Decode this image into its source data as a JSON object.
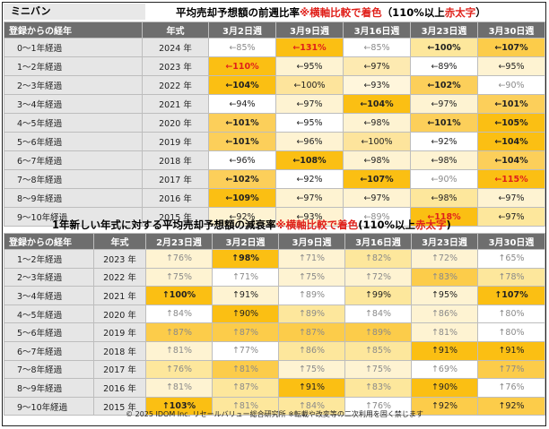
{
  "section1": {
    "tag": "ミニバン",
    "title_main": "平均売却予想額の前週比率",
    "title_note": "※横軸比較で着色",
    "title_paren_open": "（110%以上",
    "title_bold": "赤太字",
    "title_paren_close": "）",
    "headers": [
      "登録からの経年",
      "年式",
      "3月2日週",
      "3月9日週",
      "3月16日週",
      "3月23日週",
      "3月30日週"
    ],
    "rows": [
      {
        "age": "0～1年経過",
        "year": "2024 年",
        "cells": [
          {
            "t": "←85%",
            "bg": "#ffffff",
            "s": "g"
          },
          {
            "t": "←131%",
            "bg": "#fbbf13",
            "s": "r"
          },
          {
            "t": "←85%",
            "bg": "#ffffff",
            "s": "g"
          },
          {
            "t": "←100%",
            "bg": "#fde79c",
            "s": "b"
          },
          {
            "t": "←107%",
            "bg": "#fccc4a",
            "s": "b"
          }
        ]
      },
      {
        "age": "1～2年経過",
        "year": "2023 年",
        "cells": [
          {
            "t": "←110%",
            "bg": "#fbbf13",
            "s": "r"
          },
          {
            "t": "←95%",
            "bg": "#fef3d2",
            "s": ""
          },
          {
            "t": "←97%",
            "bg": "#fdeab1",
            "s": ""
          },
          {
            "t": "←89%",
            "bg": "#ffffff",
            "s": ""
          },
          {
            "t": "←95%",
            "bg": "#fef3d2",
            "s": ""
          }
        ]
      },
      {
        "age": "2～3年経過",
        "year": "2022 年",
        "cells": [
          {
            "t": "←104%",
            "bg": "#fbbf13",
            "s": "b"
          },
          {
            "t": "←100%",
            "bg": "#fde49c",
            "s": ""
          },
          {
            "t": "←93%",
            "bg": "#fff6dc",
            "s": ""
          },
          {
            "t": "←102%",
            "bg": "#fccf5a",
            "s": "b"
          },
          {
            "t": "←90%",
            "bg": "#ffffff",
            "s": "g"
          }
        ]
      },
      {
        "age": "3～4年経過",
        "year": "2021 年",
        "cells": [
          {
            "t": "←94%",
            "bg": "#ffffff",
            "s": ""
          },
          {
            "t": "←97%",
            "bg": "#fef3d2",
            "s": ""
          },
          {
            "t": "←104%",
            "bg": "#fbbf13",
            "s": "b"
          },
          {
            "t": "←97%",
            "bg": "#fef3d2",
            "s": ""
          },
          {
            "t": "←101%",
            "bg": "#fccf5a",
            "s": "b"
          }
        ]
      },
      {
        "age": "4～5年経過",
        "year": "2020 年",
        "cells": [
          {
            "t": "←101%",
            "bg": "#fccf5a",
            "s": "b"
          },
          {
            "t": "←95%",
            "bg": "#ffffff",
            "s": ""
          },
          {
            "t": "←98%",
            "bg": "#fef3d2",
            "s": ""
          },
          {
            "t": "←101%",
            "bg": "#fccf5a",
            "s": "b"
          },
          {
            "t": "←105%",
            "bg": "#fbbf13",
            "s": "b"
          }
        ]
      },
      {
        "age": "5～6年経過",
        "year": "2019 年",
        "cells": [
          {
            "t": "←101%",
            "bg": "#fccf5a",
            "s": "b"
          },
          {
            "t": "←96%",
            "bg": "#fef3d2",
            "s": ""
          },
          {
            "t": "←100%",
            "bg": "#fde49c",
            "s": ""
          },
          {
            "t": "←92%",
            "bg": "#ffffff",
            "s": ""
          },
          {
            "t": "←104%",
            "bg": "#fbbf13",
            "s": "b"
          }
        ]
      },
      {
        "age": "6～7年経過",
        "year": "2018 年",
        "cells": [
          {
            "t": "←96%",
            "bg": "#ffffff",
            "s": ""
          },
          {
            "t": "←108%",
            "bg": "#fbbf13",
            "s": "b"
          },
          {
            "t": "←98%",
            "bg": "#fef3d2",
            "s": ""
          },
          {
            "t": "←98%",
            "bg": "#fef3d2",
            "s": ""
          },
          {
            "t": "←104%",
            "bg": "#fccf5a",
            "s": "b"
          }
        ]
      },
      {
        "age": "7～8年経過",
        "year": "2017 年",
        "cells": [
          {
            "t": "←102%",
            "bg": "#fccf5a",
            "s": "b"
          },
          {
            "t": "←92%",
            "bg": "#ffffff",
            "s": ""
          },
          {
            "t": "←107%",
            "bg": "#fbbf13",
            "s": "b"
          },
          {
            "t": "←90%",
            "bg": "#ffffff",
            "s": "g"
          },
          {
            "t": "←115%",
            "bg": "#fbbf13",
            "s": "r"
          }
        ]
      },
      {
        "age": "8～9年経過",
        "year": "2016 年",
        "cells": [
          {
            "t": "←109%",
            "bg": "#fbbf13",
            "s": "b"
          },
          {
            "t": "←97%",
            "bg": "#fef3d2",
            "s": ""
          },
          {
            "t": "←97%",
            "bg": "#fef3d2",
            "s": ""
          },
          {
            "t": "←98%",
            "bg": "#fde79c",
            "s": ""
          },
          {
            "t": "←97%",
            "bg": "#fef3d2",
            "s": ""
          }
        ]
      },
      {
        "age": "9～10年経過",
        "year": "2015 年",
        "cells": [
          {
            "t": "←92%",
            "bg": "#fef3d2",
            "s": ""
          },
          {
            "t": "←93%",
            "bg": "#fef3d2",
            "s": ""
          },
          {
            "t": "←89%",
            "bg": "#ffffff",
            "s": "g"
          },
          {
            "t": "←118%",
            "bg": "#fbbf13",
            "s": "r"
          },
          {
            "t": "←97%",
            "bg": "#fde79c",
            "s": ""
          }
        ]
      }
    ]
  },
  "section2": {
    "title_main": "1年新しい年式に対する平均売却予想額の減衰率",
    "title_note": "※横軸比較で着色",
    "title_paren_open": "(110%以上",
    "title_bold": "赤太字",
    "title_paren_close": ")",
    "headers": [
      "登録からの経年",
      "年式",
      "2月23日週",
      "3月2日週",
      "3月9日週",
      "3月16日週",
      "3月23日週",
      "3月30日週"
    ],
    "rows": [
      {
        "age": "1～2年経過",
        "year": "2023 年",
        "cells": [
          {
            "t": "↑76%",
            "bg": "#fef3d2",
            "s": "g"
          },
          {
            "t": "↑98%",
            "bg": "#fbbf13",
            "s": "b"
          },
          {
            "t": "↑71%",
            "bg": "#fef3d2",
            "s": "g"
          },
          {
            "t": "↑82%",
            "bg": "#fde79c",
            "s": "g"
          },
          {
            "t": "↑72%",
            "bg": "#fef3d2",
            "s": "g"
          },
          {
            "t": "↑65%",
            "bg": "#ffffff",
            "s": "g"
          }
        ]
      },
      {
        "age": "2～3年経過",
        "year": "2022 年",
        "cells": [
          {
            "t": "↑75%",
            "bg": "#fef3d2",
            "s": "g"
          },
          {
            "t": "↑71%",
            "bg": "#ffffff",
            "s": "g"
          },
          {
            "t": "↑75%",
            "bg": "#fef3d2",
            "s": "g"
          },
          {
            "t": "↑72%",
            "bg": "#fef3d2",
            "s": "g"
          },
          {
            "t": "↑83%",
            "bg": "#fccc4a",
            "s": "g"
          },
          {
            "t": "↑78%",
            "bg": "#fde79c",
            "s": "g"
          }
        ]
      },
      {
        "age": "3～4年経過",
        "year": "2021 年",
        "cells": [
          {
            "t": "↑100%",
            "bg": "#fbbf13",
            "s": "b"
          },
          {
            "t": "↑91%",
            "bg": "#fef3d2",
            "s": ""
          },
          {
            "t": "↑89%",
            "bg": "#ffffff",
            "s": "g"
          },
          {
            "t": "↑99%",
            "bg": "#fde79c",
            "s": ""
          },
          {
            "t": "↑95%",
            "bg": "#fef3d2",
            "s": ""
          },
          {
            "t": "↑107%",
            "bg": "#fbbf13",
            "s": "b"
          }
        ]
      },
      {
        "age": "4～5年経過",
        "year": "2020 年",
        "cells": [
          {
            "t": "↑84%",
            "bg": "#ffffff",
            "s": "g"
          },
          {
            "t": "↑90%",
            "bg": "#fbbf13",
            "s": ""
          },
          {
            "t": "↑89%",
            "bg": "#fde79c",
            "s": "g"
          },
          {
            "t": "↑84%",
            "bg": "#ffffff",
            "s": "g"
          },
          {
            "t": "↑86%",
            "bg": "#fef3d2",
            "s": "g"
          },
          {
            "t": "↑80%",
            "bg": "#ffffff",
            "s": "g"
          }
        ]
      },
      {
        "age": "5～6年経過",
        "year": "2019 年",
        "cells": [
          {
            "t": "↑87%",
            "bg": "#fccc4a",
            "s": "g"
          },
          {
            "t": "↑87%",
            "bg": "#fccc4a",
            "s": "g"
          },
          {
            "t": "↑87%",
            "bg": "#fccc4a",
            "s": "g"
          },
          {
            "t": "↑89%",
            "bg": "#fccc4a",
            "s": "g"
          },
          {
            "t": "↑81%",
            "bg": "#fef3d2",
            "s": "g"
          },
          {
            "t": "↑80%",
            "bg": "#ffffff",
            "s": "g"
          }
        ]
      },
      {
        "age": "6～7年経過",
        "year": "2018 年",
        "cells": [
          {
            "t": "↑81%",
            "bg": "#fef3d2",
            "s": "g"
          },
          {
            "t": "↑77%",
            "bg": "#ffffff",
            "s": "g"
          },
          {
            "t": "↑86%",
            "bg": "#fde79c",
            "s": "g"
          },
          {
            "t": "↑85%",
            "bg": "#fde79c",
            "s": "g"
          },
          {
            "t": "↑91%",
            "bg": "#fbbf13",
            "s": ""
          },
          {
            "t": "↑91%",
            "bg": "#fbbf13",
            "s": ""
          }
        ]
      },
      {
        "age": "7～8年経過",
        "year": "2017 年",
        "cells": [
          {
            "t": "↑76%",
            "bg": "#fde79c",
            "s": "g"
          },
          {
            "t": "↑81%",
            "bg": "#fccc4a",
            "s": "g"
          },
          {
            "t": "↑75%",
            "bg": "#fef3d2",
            "s": "g"
          },
          {
            "t": "↑75%",
            "bg": "#fef3d2",
            "s": "g"
          },
          {
            "t": "↑69%",
            "bg": "#ffffff",
            "s": "g"
          },
          {
            "t": "↑77%",
            "bg": "#fccc4a",
            "s": "g"
          }
        ]
      },
      {
        "age": "8～9年経過",
        "year": "2016 年",
        "cells": [
          {
            "t": "↑81%",
            "bg": "#fef3d2",
            "s": "g"
          },
          {
            "t": "↑87%",
            "bg": "#fde79c",
            "s": "g"
          },
          {
            "t": "↑91%",
            "bg": "#fbbf13",
            "s": ""
          },
          {
            "t": "↑83%",
            "bg": "#fde79c",
            "s": "g"
          },
          {
            "t": "↑90%",
            "bg": "#fbbf13",
            "s": ""
          },
          {
            "t": "↑76%",
            "bg": "#ffffff",
            "s": "g"
          }
        ]
      },
      {
        "age": "9～10年経過",
        "year": "2015 年",
        "cells": [
          {
            "t": "↑103%",
            "bg": "#fbbf13",
            "s": "b"
          },
          {
            "t": "↑81%",
            "bg": "#fde79c",
            "s": "g"
          },
          {
            "t": "↑84%",
            "bg": "#fde79c",
            "s": "g"
          },
          {
            "t": "↑76%",
            "bg": "#ffffff",
            "s": "g"
          },
          {
            "t": "↑92%",
            "bg": "#fccc4a",
            "s": ""
          },
          {
            "t": "↑92%",
            "bg": "#fccc4a",
            "s": ""
          }
        ]
      }
    ]
  },
  "footer": "© 2025 IDOM Inc. リセールバリュー総合研究所 ※転載や改変等の二次利用を固く禁じます"
}
